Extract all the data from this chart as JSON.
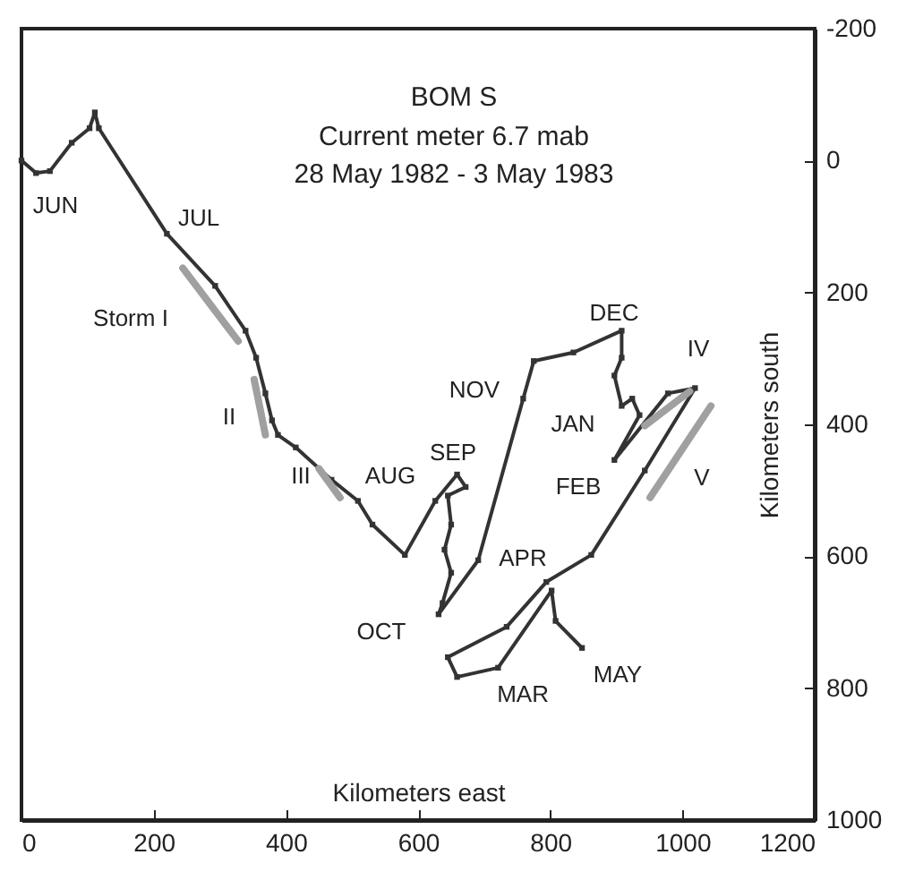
{
  "chart_data": {
    "type": "line",
    "title": "BOM S",
    "subtitle": "Current meter 6.7 mab\n28 May 1982 - 3 May 1983",
    "xlabel": "Kilometers east",
    "ylabel": "Kilometers south",
    "xlim": [
      0,
      1200
    ],
    "xticks": [
      0,
      200,
      400,
      600,
      800,
      1000,
      1200
    ],
    "ylim": [
      1000,
      -200
    ],
    "yticks": [
      -200,
      0,
      200,
      400,
      600,
      800,
      1000
    ],
    "marker": "square",
    "series": [
      {
        "color": "#333333",
        "x": [
          0,
          22,
          43,
          76,
          103,
          111,
          117,
          220,
          293,
          339,
          355,
          369,
          379,
          388,
          415,
          469,
          509,
          531,
          580,
          626,
          659,
          672,
          645,
          650,
          640,
          650,
          637,
          631,
          691,
          759,
          775,
          835,
          908,
          908,
          897,
          908,
          924,
          935,
          897,
          978,
          1019,
          943,
          862,
          794,
          734,
          645,
          659,
          721,
          802,
          808,
          848
        ],
        "values": [
          0,
          19,
          16,
          -27,
          -49,
          -73,
          -49,
          111,
          190,
          258,
          299,
          353,
          394,
          416,
          435,
          484,
          516,
          552,
          598,
          516,
          476,
          495,
          508,
          552,
          590,
          625,
          671,
          688,
          606,
          361,
          304,
          291,
          258,
          299,
          326,
          372,
          361,
          386,
          454,
          353,
          345,
          470,
          598,
          639,
          707,
          753,
          783,
          769,
          652,
          698,
          739
        ]
      },
      {
        "color": "#a0a0a0",
        "marker": "none",
        "x": [
          244,
          328
        ],
        "values": [
          163,
          274
        ]
      },
      {
        "color": "#a0a0a0",
        "marker": "none",
        "x": [
          352,
          369
        ],
        "values": [
          332,
          416
        ]
      },
      {
        "color": "#a0a0a0",
        "marker": "none",
        "x": [
          450,
          482
        ],
        "values": [
          467,
          511
        ]
      },
      {
        "color": "#a0a0a0",
        "marker": "none",
        "x": [
          943,
          1011
        ],
        "values": [
          402,
          350
        ]
      },
      {
        "color": "#a0a0a0",
        "marker": "none",
        "x": [
          951,
          1043
        ],
        "values": [
          511,
          372
        ]
      }
    ],
    "annotations": [
      "JUN",
      "JUL",
      "AUG",
      "SEP",
      "OCT",
      "NOV",
      "DEC",
      "JAN",
      "FEB",
      "APR",
      "MAR",
      "MAY",
      "Storm I",
      "II",
      "III",
      "IV",
      "V"
    ]
  }
}
